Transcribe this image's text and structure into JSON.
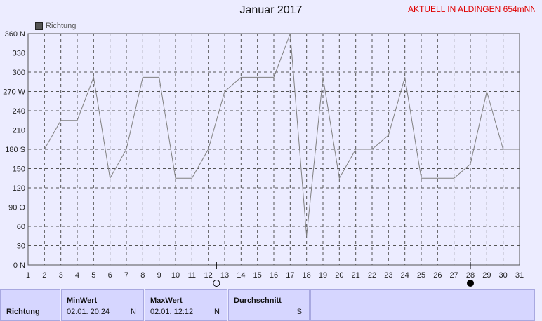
{
  "page": {
    "title": "Januar 2017",
    "station": "AKTUELL IN ALDINGEN 654mNN"
  },
  "legend": {
    "label": "Richtung",
    "color": "#555555"
  },
  "chart_data": {
    "type": "line",
    "title": "Januar 2017",
    "xlabel": "",
    "ylabel": "",
    "x": [
      1,
      2,
      3,
      4,
      5,
      6,
      7,
      8,
      9,
      10,
      11,
      12,
      13,
      14,
      15,
      16,
      17,
      18,
      19,
      20,
      21,
      22,
      23,
      24,
      25,
      26,
      27,
      28,
      29,
      30,
      31
    ],
    "series": [
      {
        "name": "Richtung",
        "x": [
          2,
          3,
          4,
          5,
          6,
          7,
          8,
          9,
          10,
          11,
          12,
          13,
          14,
          15,
          16,
          17,
          18,
          19,
          20,
          21,
          22,
          23,
          24,
          25,
          26,
          27,
          28,
          29,
          30,
          31
        ],
        "values": [
          180,
          225,
          225,
          292,
          135,
          180,
          292,
          292,
          135,
          135,
          180,
          270,
          292,
          292,
          292,
          360,
          45,
          292,
          135,
          180,
          180,
          202,
          292,
          135,
          135,
          135,
          157,
          270,
          180,
          180
        ]
      }
    ],
    "ylim": [
      0,
      360
    ],
    "xlim": [
      1,
      31
    ],
    "y_ticks": [
      {
        "value": 0,
        "label": "0 N"
      },
      {
        "value": 30,
        "label": "30"
      },
      {
        "value": 60,
        "label": "60"
      },
      {
        "value": 90,
        "label": "90 O"
      },
      {
        "value": 120,
        "label": "120"
      },
      {
        "value": 150,
        "label": "150"
      },
      {
        "value": 180,
        "label": "180 S"
      },
      {
        "value": 210,
        "label": "210"
      },
      {
        "value": 240,
        "label": "240"
      },
      {
        "value": 270,
        "label": "270 W"
      },
      {
        "value": 300,
        "label": "300"
      },
      {
        "value": 330,
        "label": "330"
      },
      {
        "value": 360,
        "label": "360 N"
      }
    ],
    "x_ticks": [
      "1",
      "2",
      "3",
      "4",
      "5",
      "6",
      "7",
      "8",
      "9",
      "10",
      "11",
      "12",
      "13",
      "14",
      "15",
      "16",
      "17",
      "18",
      "19",
      "20",
      "21",
      "22",
      "23",
      "24",
      "25",
      "26",
      "27",
      "28",
      "29",
      "30",
      "31"
    ],
    "moon_phases": [
      {
        "day": 12.5,
        "phase": "full-moon"
      },
      {
        "day": 28,
        "phase": "new-moon"
      }
    ],
    "grid": true,
    "line_color": "#808080",
    "grid_color": "#555555"
  },
  "stats": {
    "row_label": "Richtung",
    "min": {
      "header": "MinWert",
      "date": "02.01.  20:24",
      "dir": "N"
    },
    "max": {
      "header": "MaxWert",
      "date": "02.01.  12:12",
      "dir": "N"
    },
    "avg": {
      "header": "Durchschnitt",
      "dir": "S"
    }
  }
}
